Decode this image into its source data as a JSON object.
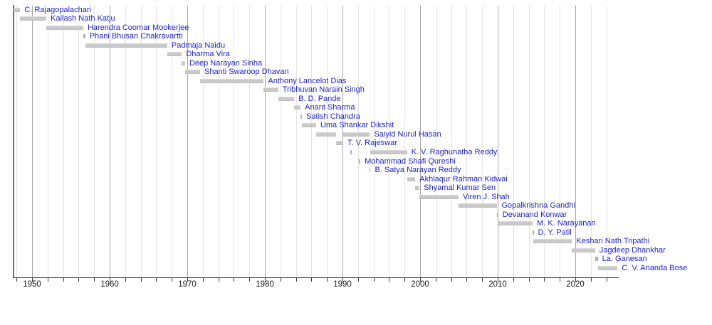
{
  "colors": {
    "background": "#ffffff",
    "bar_fill": "#c9c9c9",
    "acting_bar_fill": "#b2b2b2",
    "name_link_blue": "#2222cc",
    "minor_gridline": "#e3e3e3",
    "decade_gridline": "#a6a6a6",
    "axis": "#3a3a3a",
    "year_label": "#1a1a1a"
  },
  "chart_data": {
    "type": "bar",
    "variant": "horizontal-timeline-gantt",
    "title": "",
    "xlabel": "",
    "ylabel": "",
    "grid": "vertical, every 2 years; darker line each decade",
    "legend": "none",
    "x_axis": {
      "start_year": 1947.55,
      "end_year": 2025.6,
      "tick_interval_years": 2,
      "label_interval_years": 10
    },
    "x_tick_labels": [
      "1950",
      "1960",
      "1970",
      "1980",
      "1990",
      "2000",
      "2010",
      "2020"
    ],
    "x_tick_years": [
      1950,
      1960,
      1970,
      1980,
      1990,
      2000,
      2010,
      2020
    ],
    "series": [
      {
        "name": "C. Rajagopalachari",
        "terms": [
          [
            1947.62,
            1948.48
          ]
        ]
      },
      {
        "name": "Kailash Nath Katju",
        "terms": [
          [
            1948.48,
            1951.85
          ]
        ]
      },
      {
        "name": "Harendra Coomar Mookerjee",
        "terms": [
          [
            1951.85,
            1956.6
          ]
        ]
      },
      {
        "name": "Phani Bhusan Chakravartti",
        "terms": [
          [
            1956.6,
            1956.85
          ]
        ]
      },
      {
        "name": "Padmaja Naidu",
        "terms": [
          [
            1956.85,
            1967.42
          ]
        ]
      },
      {
        "name": "Dharma Vira",
        "terms": [
          [
            1967.42,
            1969.3
          ]
        ]
      },
      {
        "name": "Deep Narayan Sinha",
        "terms": [
          [
            1969.3,
            1969.72
          ]
        ]
      },
      {
        "name": "Shanti Swaroop Dhavan",
        "terms": [
          [
            1969.72,
            1971.65
          ]
        ]
      },
      {
        "name": "Anthony Lancelot Dias",
        "terms": [
          [
            1971.65,
            1979.85
          ]
        ]
      },
      {
        "name": "Tribhuvan Narain Singh",
        "terms": [
          [
            1979.85,
            1981.72
          ]
        ]
      },
      {
        "name": "B. D. Pande",
        "terms": [
          [
            1981.72,
            1983.78
          ]
        ]
      },
      {
        "name": "Anant Sharma",
        "terms": [
          [
            1983.78,
            1984.6
          ]
        ]
      },
      {
        "name": "Satish Chandra",
        "terms": [
          [
            1984.6,
            1984.78
          ]
        ]
      },
      {
        "name": "Uma Shankar Dikshit",
        "terms": [
          [
            1984.78,
            1986.6
          ]
        ]
      },
      {
        "name": "Saiyid Nurul Hasan",
        "terms": [
          [
            1986.6,
            1989.22
          ],
          [
            1990.1,
            1993.53
          ]
        ]
      },
      {
        "name": "T. V. Rajeswar",
        "terms": [
          [
            1989.22,
            1990.1
          ]
        ]
      },
      {
        "name": "K. V. Raghunatha Reddy",
        "terms": [
          [
            1991.0,
            1991.2
          ],
          [
            1993.62,
            1998.32
          ]
        ]
      },
      {
        "name": "Mohammad Shafi Qureshi",
        "terms": [
          [
            1992.1,
            1992.3
          ]
        ]
      },
      {
        "name": "B. Satya Narayan Reddy",
        "terms": [
          [
            1993.45,
            1993.62
          ]
        ]
      },
      {
        "name": "Akhlaqur Rahman Kidwai",
        "terms": [
          [
            1998.32,
            1999.38
          ]
        ]
      },
      {
        "name": "Shyamal Kumar Sen",
        "terms": [
          [
            1999.38,
            1999.93
          ]
        ]
      },
      {
        "name": "Viren J. Shah",
        "terms": [
          [
            1999.93,
            2004.95
          ]
        ]
      },
      {
        "name": "Gopalkrishna Gandhi",
        "terms": [
          [
            2004.95,
            2009.95
          ]
        ]
      },
      {
        "name": "Devanand Konwar",
        "terms": [
          [
            2009.95,
            2010.07
          ]
        ]
      },
      {
        "name": "M. K. Narayanan",
        "terms": [
          [
            2010.07,
            2014.5
          ]
        ]
      },
      {
        "name": "D. Y. Patil",
        "terms": [
          [
            2014.5,
            2014.63
          ]
        ]
      },
      {
        "name": "Keshari Nath Tripathi",
        "terms": [
          [
            2014.63,
            2019.58
          ]
        ]
      },
      {
        "name": "Jagdeep Dhankhar",
        "terms": [
          [
            2019.58,
            2022.55
          ]
        ]
      },
      {
        "name": "La. Ganesan",
        "terms": [
          [
            2022.55,
            2022.9
          ]
        ]
      },
      {
        "name": "C. V. Ananda Bose",
        "terms": [
          [
            2022.9,
            2025.45
          ]
        ]
      }
    ]
  }
}
